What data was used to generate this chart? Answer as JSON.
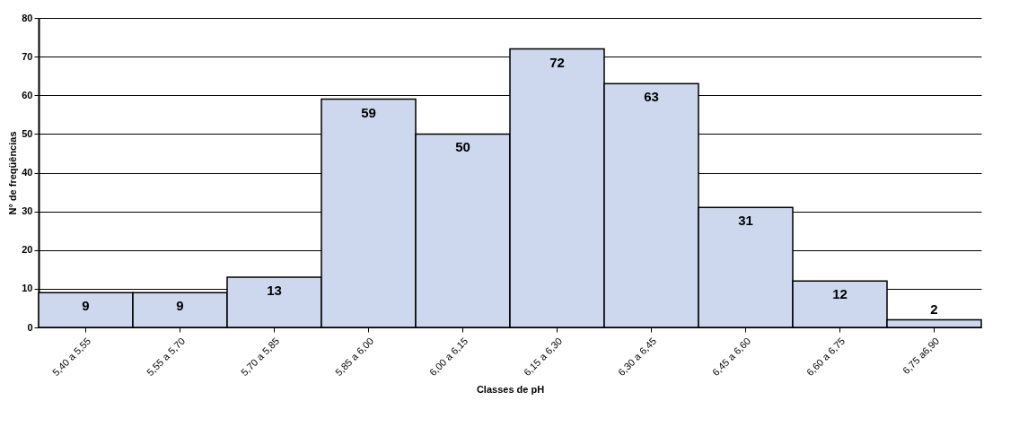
{
  "chart_data": {
    "type": "bar",
    "xlabel": "Classes de pH",
    "ylabel": "N° de freqüências",
    "categories": [
      "5,40 a 5,55",
      "5,55 a 5,70",
      "5,70 a 5,85",
      "5,85 a 6,00",
      "6,00 a 6,15",
      "6,15 a 6,30",
      "6,30 a 6,45",
      "6,45 a 6,60",
      "6,60 a 6,75",
      "6,75 a6,90"
    ],
    "values": [
      9,
      9,
      13,
      59,
      50,
      72,
      63,
      31,
      12,
      2
    ],
    "color": "#cdd7ee",
    "ylim": [
      0,
      80
    ],
    "yticks": [
      0,
      10,
      20,
      30,
      40,
      50,
      60,
      70,
      80
    ],
    "grid": "y",
    "data_labels": true
  }
}
